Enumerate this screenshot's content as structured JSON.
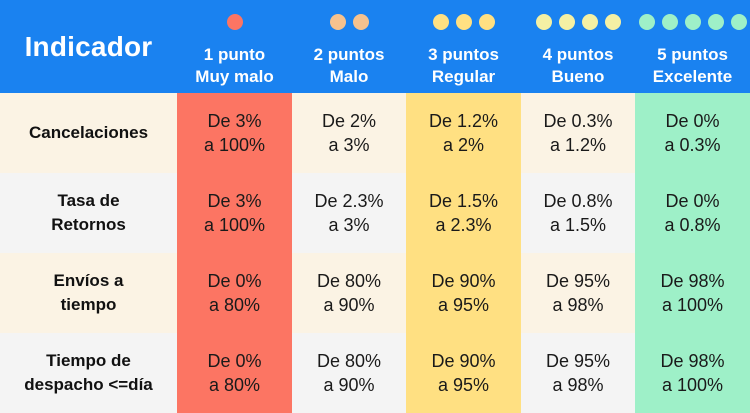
{
  "header": {
    "title": "Indicador",
    "columns": [
      {
        "line1": "1 punto",
        "line2": "Muy malo",
        "dots": 1,
        "dot_color": "#fc7563"
      },
      {
        "line1": "2 puntos",
        "line2": "Malo",
        "dots": 2,
        "dot_color": "#f6c28e"
      },
      {
        "line1": "3 puntos",
        "line2": "Regular",
        "dots": 3,
        "dot_color": "#ffe082"
      },
      {
        "line1": "4 puntos",
        "line2": "Bueno",
        "dots": 4,
        "dot_color": "#f4f0a4"
      },
      {
        "line1": "5 puntos",
        "line2": "Excelente",
        "dots": 5,
        "dot_color": "#9ef0c8"
      }
    ]
  },
  "rows": [
    {
      "label_line1": "Cancelaciones",
      "label_line2": "",
      "cells": [
        {
          "line1": "De 3%",
          "line2": "a 100%"
        },
        {
          "line1": "De 2%",
          "line2": "a 3%"
        },
        {
          "line1": "De 1.2%",
          "line2": "a 2%"
        },
        {
          "line1": "De 0.3%",
          "line2": "a 1.2%"
        },
        {
          "line1": "De 0%",
          "line2": "a 0.3%"
        }
      ]
    },
    {
      "label_line1": "Tasa de",
      "label_line2": "Retornos",
      "cells": [
        {
          "line1": "De 3%",
          "line2": "a 100%"
        },
        {
          "line1": "De 2.3%",
          "line2": "a 3%"
        },
        {
          "line1": "De 1.5%",
          "line2": "a 2.3%"
        },
        {
          "line1": "De 0.8%",
          "line2": "a 1.5%"
        },
        {
          "line1": "De 0%",
          "line2": "a 0.8%"
        }
      ]
    },
    {
      "label_line1": "Envíos a",
      "label_line2": "tiempo",
      "cells": [
        {
          "line1": "De 0%",
          "line2": "a 80%"
        },
        {
          "line1": "De 80%",
          "line2": "a 90%"
        },
        {
          "line1": "De 90%",
          "line2": "a 95%"
        },
        {
          "line1": "De 95%",
          "line2": "a 98%"
        },
        {
          "line1": "De 98%",
          "line2": "a 100%"
        }
      ]
    },
    {
      "label_line1": "Tiempo de",
      "label_line2": "despacho <=día",
      "cells": [
        {
          "line1": "De 0%",
          "line2": "a 80%"
        },
        {
          "line1": "De 80%",
          "line2": "a 90%"
        },
        {
          "line1": "De 90%",
          "line2": "a 95%"
        },
        {
          "line1": "De 95%",
          "line2": "a 98%"
        },
        {
          "line1": "De 98%",
          "line2": "a 100%"
        }
      ]
    }
  ]
}
